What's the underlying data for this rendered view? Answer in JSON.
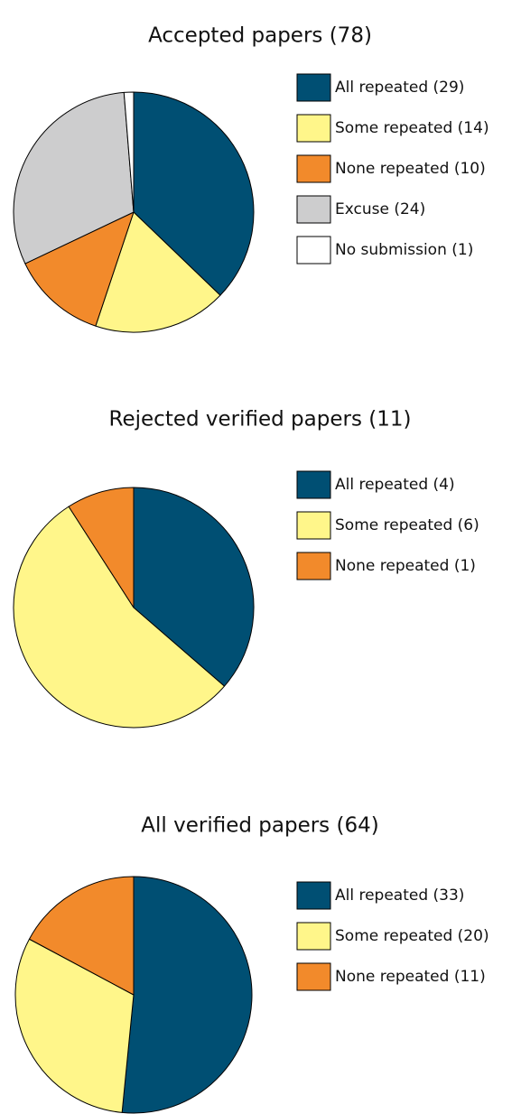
{
  "chart_data": [
    {
      "type": "pie",
      "title": "Accepted papers (78)",
      "categories": [
        "All repeated (29)",
        "Some repeated (14)",
        "None repeated (10)",
        "Excuse (24)",
        "No submission (1)"
      ],
      "values": [
        29,
        14,
        10,
        24,
        1
      ],
      "colors": [
        "#004f73",
        "#fff68a",
        "#f28a2b",
        "#cdcdce",
        "#ffffff"
      ]
    },
    {
      "type": "pie",
      "title": "Rejected verified papers (11)",
      "categories": [
        "All repeated (4)",
        "Some repeated (6)",
        "None repeated (1)"
      ],
      "values": [
        4,
        6,
        1
      ],
      "colors": [
        "#004f73",
        "#fff68a",
        "#f28a2b"
      ]
    },
    {
      "type": "pie",
      "title": "All verified papers (64)",
      "categories": [
        "All repeated (33)",
        "Some repeated (20)",
        "None repeated (11)"
      ],
      "values": [
        33,
        20,
        11
      ],
      "colors": [
        "#004f73",
        "#fff68a",
        "#f28a2b"
      ]
    }
  ]
}
